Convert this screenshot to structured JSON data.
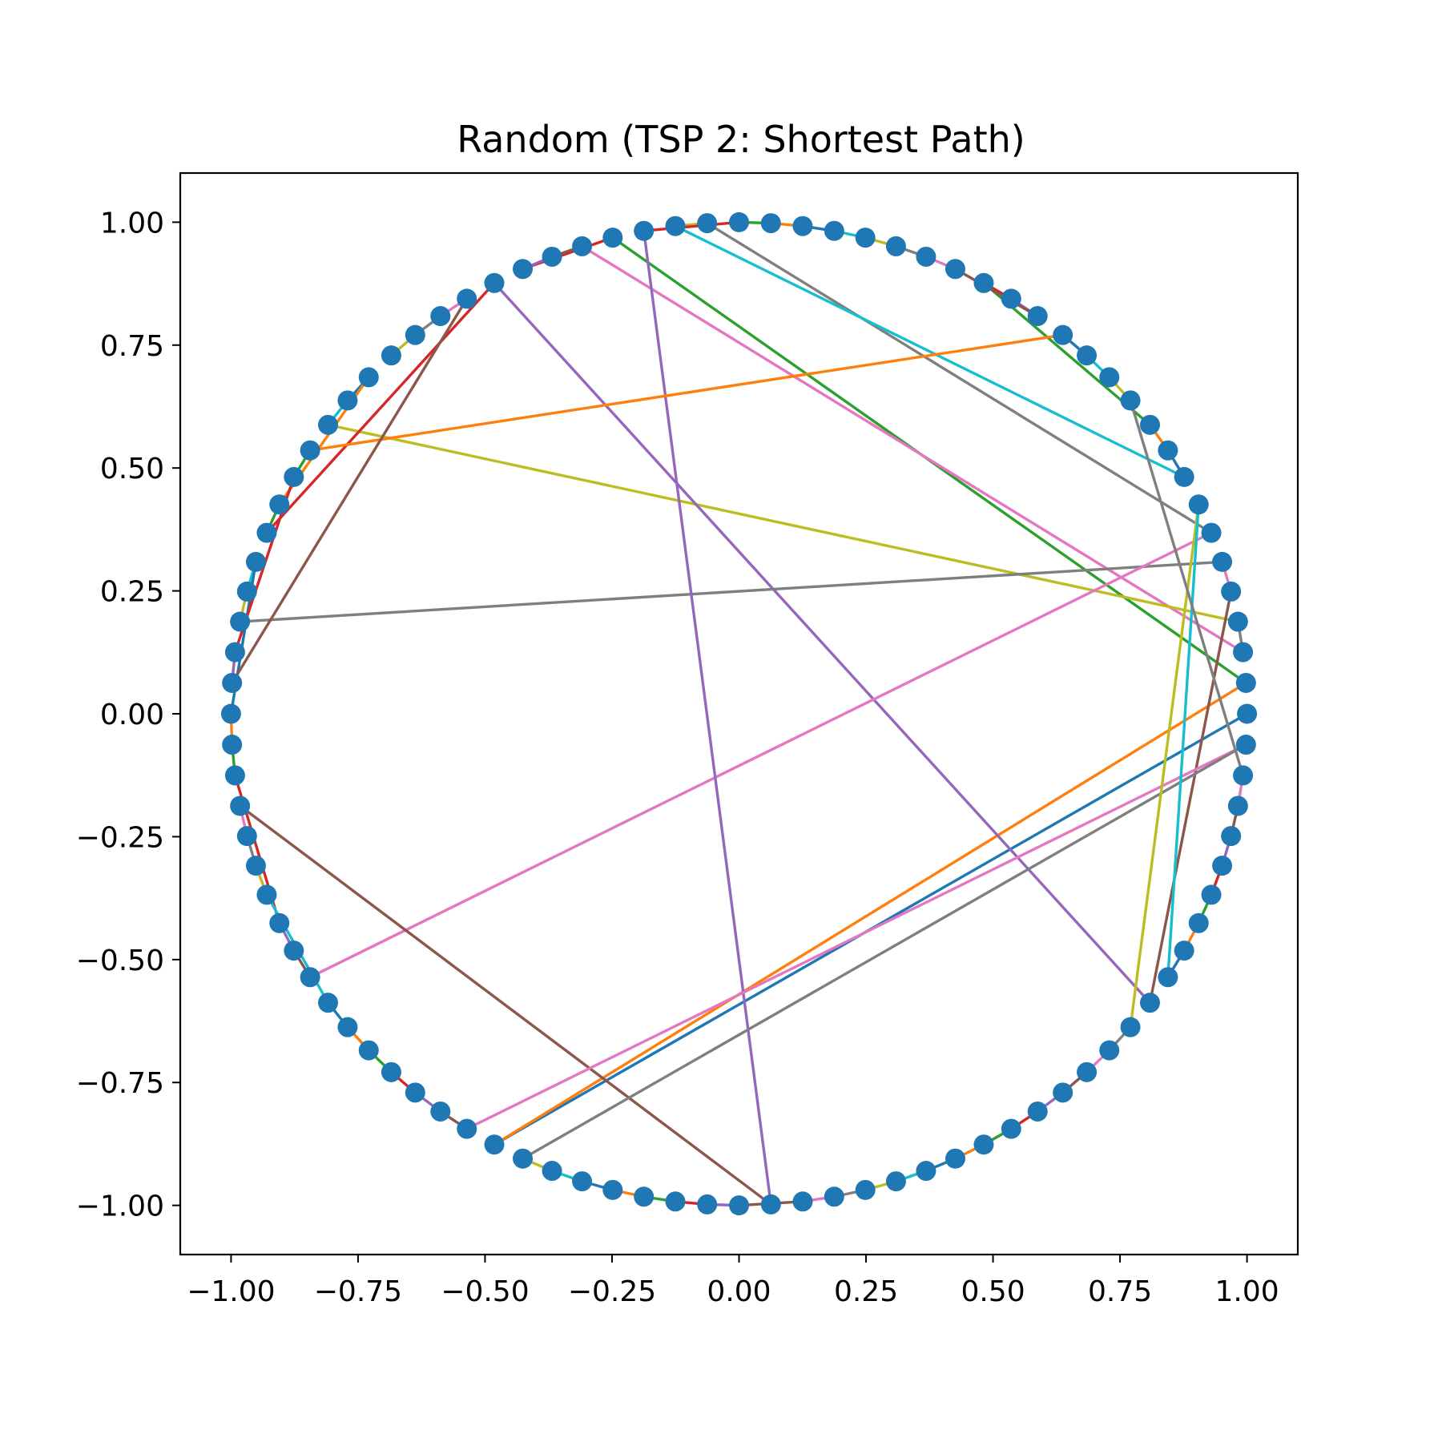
{
  "chart_data": {
    "type": "line",
    "title": "Random (TSP 2: Shortest Path)",
    "xlabel": "",
    "ylabel": "",
    "xlim": [
      -1.1,
      1.1
    ],
    "ylim": [
      -1.1,
      1.1
    ],
    "xticks": [
      -1.0,
      -0.75,
      -0.5,
      -0.25,
      0.0,
      0.25,
      0.5,
      0.75,
      1.0
    ],
    "yticks": [
      -1.0,
      -0.75,
      -0.5,
      -0.25,
      0.0,
      0.25,
      0.5,
      0.75,
      1.0
    ],
    "xtick_labels": [
      "−1.00",
      "−0.75",
      "−0.50",
      "−0.25",
      "0.00",
      "0.25",
      "0.50",
      "0.75",
      "1.00"
    ],
    "ytick_labels": [
      "1.00",
      "0.75",
      "0.50",
      "0.25",
      "0.00",
      "−0.25",
      "−0.50",
      "−0.75",
      "−1.00"
    ],
    "grid": false,
    "legend": "none",
    "node_color": "#1f77b4",
    "palette": [
      "#1f77b4",
      "#ff7f0e",
      "#2ca02c",
      "#d62728",
      "#9467bd",
      "#8c564b",
      "#e377c2",
      "#7f7f7f",
      "#bcbd22",
      "#17becf"
    ],
    "nodes": {
      "count": 100,
      "radius": 1.0,
      "start_angle_deg": 0,
      "step_deg": 3.6
    },
    "tour": [
      0,
      67,
      1,
      29,
      32,
      31,
      30,
      2,
      3,
      40,
      39,
      38,
      43,
      44,
      33,
      90,
      4,
      5,
      47,
      46,
      45,
      50,
      51,
      52,
      57,
      58,
      59,
      6,
      26,
      27,
      8,
      9,
      10,
      17,
      16,
      15,
      18,
      19,
      20,
      21,
      22,
      23,
      24,
      25,
      28,
      76,
      53,
      54,
      55,
      56,
      60,
      61,
      62,
      63,
      64,
      65,
      66,
      99,
      68,
      69,
      70,
      71,
      72,
      73,
      74,
      75,
      77,
      78,
      79,
      80,
      81,
      82,
      83,
      84,
      85,
      86,
      87,
      88,
      89,
      7,
      91,
      92,
      93,
      94,
      95,
      96,
      97,
      98,
      11,
      12,
      13,
      14,
      41,
      42,
      48,
      49,
      34,
      35,
      36,
      37
    ]
  }
}
